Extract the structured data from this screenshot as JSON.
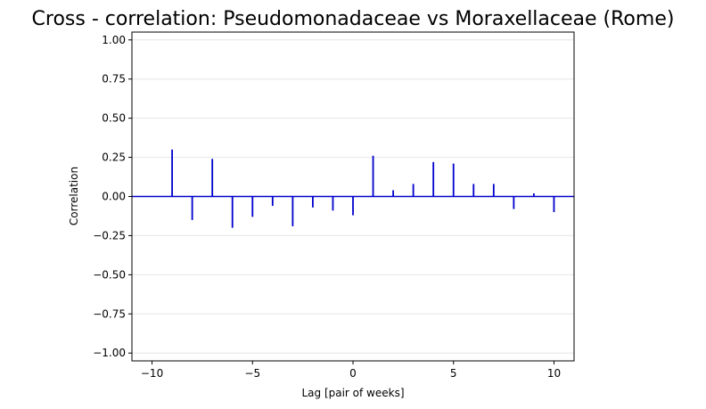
{
  "chart_data": {
    "type": "bar",
    "subtype": "stem",
    "title": "Cross - correlation: Pseudomonadaceae vs Moraxellaceae (Rome)",
    "xlabel": "Lag [pair of weeks]",
    "ylabel": "Correlation",
    "xlim": [
      -11,
      11
    ],
    "ylim": [
      -1.05,
      1.05
    ],
    "xticks": [
      -10,
      -5,
      0,
      5,
      10
    ],
    "xtick_labels": [
      "−10",
      "−5",
      "0",
      "5",
      "10"
    ],
    "yticks": [
      -1.0,
      -0.75,
      -0.5,
      -0.25,
      0.0,
      0.25,
      0.5,
      0.75,
      1.0
    ],
    "ytick_labels": [
      "−1.00",
      "−0.75",
      "−0.50",
      "−0.25",
      "0.00",
      "0.25",
      "0.50",
      "0.75",
      "1.00"
    ],
    "grid": "horizontal",
    "baseline": 0,
    "x": [
      -10,
      -9,
      -8,
      -7,
      -6,
      -5,
      -4,
      -3,
      -2,
      -1,
      0,
      1,
      2,
      3,
      4,
      5,
      6,
      7,
      8,
      9,
      10
    ],
    "values": [
      0.0,
      0.3,
      -0.15,
      0.24,
      -0.2,
      -0.13,
      -0.06,
      -0.19,
      -0.07,
      -0.09,
      -0.12,
      0.26,
      0.04,
      0.08,
      0.22,
      0.21,
      0.08,
      0.08,
      -0.08,
      0.02,
      -0.1
    ],
    "colors": {
      "stem": "#0000cd",
      "baseline": "#0000cd",
      "grid": "#e6e6e6",
      "axes": "#000000"
    }
  }
}
